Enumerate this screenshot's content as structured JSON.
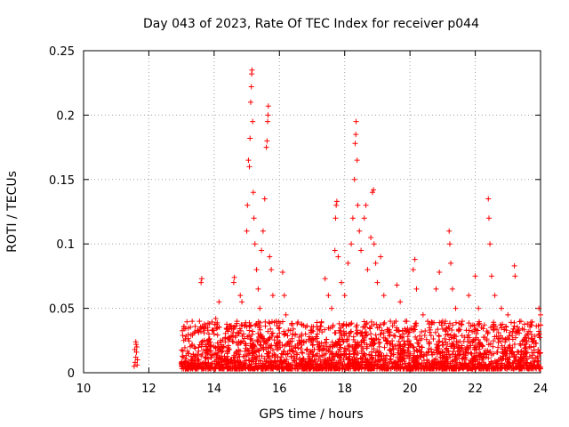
{
  "chart_data": {
    "type": "scatter",
    "title": "Day 043 of 2023, Rate Of TEC Index for receiver p044",
    "xlabel": "GPS time / hours",
    "ylabel": "ROTI / TECUs",
    "xlim": [
      10,
      24
    ],
    "ylim": [
      0,
      0.25
    ],
    "x_ticks": [
      10,
      12,
      14,
      16,
      18,
      20,
      22,
      24
    ],
    "x_tick_labels": [
      "10",
      "12",
      "14",
      "16",
      "18",
      "20",
      "22",
      "24"
    ],
    "y_ticks": [
      0,
      0.05,
      0.1,
      0.15,
      0.2,
      0.25
    ],
    "y_tick_labels": [
      "0",
      "0.05",
      "0.1",
      "0.15",
      "0.2",
      "0.25"
    ],
    "grid": true,
    "marker": "plus",
    "colors": {
      "series": "#ff0000",
      "grid": "#a0a0a0",
      "axis": "#000000"
    },
    "series": [
      {
        "values": [
          [
            11.55,
            0.005
          ],
          [
            11.58,
            0.008
          ],
          [
            11.6,
            0.012
          ],
          [
            11.62,
            0.016
          ],
          [
            11.63,
            0.02
          ],
          [
            11.6,
            0.024
          ],
          [
            11.65,
            0.01
          ],
          [
            11.57,
            0.018
          ],
          [
            11.64,
            0.006
          ],
          [
            11.61,
            0.022
          ],
          [
            13.0,
            0.005
          ],
          [
            13.05,
            0.012
          ],
          [
            13.1,
            0.008
          ],
          [
            13.2,
            0.015
          ],
          [
            13.3,
            0.01
          ],
          [
            13.4,
            0.02
          ],
          [
            13.5,
            0.014
          ],
          [
            13.6,
            0.07
          ],
          [
            13.62,
            0.073
          ],
          [
            13.55,
            0.04
          ],
          [
            13.7,
            0.025
          ],
          [
            13.8,
            0.018
          ],
          [
            13.9,
            0.012
          ],
          [
            14.0,
            0.03
          ],
          [
            14.05,
            0.042
          ],
          [
            14.1,
            0.035
          ],
          [
            14.15,
            0.055
          ],
          [
            14.2,
            0.025
          ],
          [
            14.3,
            0.02
          ],
          [
            14.4,
            0.015
          ],
          [
            14.5,
            0.028
          ],
          [
            14.6,
            0.07
          ],
          [
            14.62,
            0.074
          ],
          [
            14.7,
            0.04
          ],
          [
            14.8,
            0.06
          ],
          [
            14.85,
            0.055
          ],
          [
            14.9,
            0.03
          ],
          [
            15.0,
            0.11
          ],
          [
            15.02,
            0.13
          ],
          [
            15.05,
            0.165
          ],
          [
            15.08,
            0.16
          ],
          [
            15.1,
            0.182
          ],
          [
            15.12,
            0.21
          ],
          [
            15.14,
            0.222
          ],
          [
            15.15,
            0.232
          ],
          [
            15.16,
            0.235
          ],
          [
            15.18,
            0.195
          ],
          [
            15.2,
            0.14
          ],
          [
            15.22,
            0.12
          ],
          [
            15.25,
            0.1
          ],
          [
            15.3,
            0.08
          ],
          [
            15.35,
            0.065
          ],
          [
            15.4,
            0.05
          ],
          [
            15.45,
            0.095
          ],
          [
            15.5,
            0.11
          ],
          [
            15.55,
            0.135
          ],
          [
            15.6,
            0.175
          ],
          [
            15.62,
            0.18
          ],
          [
            15.64,
            0.195
          ],
          [
            15.65,
            0.2
          ],
          [
            15.66,
            0.207
          ],
          [
            15.7,
            0.09
          ],
          [
            15.75,
            0.08
          ],
          [
            15.8,
            0.06
          ],
          [
            15.9,
            0.04
          ],
          [
            16.0,
            0.035
          ],
          [
            16.1,
            0.078
          ],
          [
            16.15,
            0.06
          ],
          [
            16.2,
            0.045
          ],
          [
            16.4,
            0.03
          ],
          [
            16.6,
            0.025
          ],
          [
            16.8,
            0.03
          ],
          [
            17.0,
            0.025
          ],
          [
            17.2,
            0.02
          ],
          [
            17.4,
            0.073
          ],
          [
            17.5,
            0.06
          ],
          [
            17.6,
            0.05
          ],
          [
            17.7,
            0.095
          ],
          [
            17.72,
            0.12
          ],
          [
            17.74,
            0.13
          ],
          [
            17.76,
            0.133
          ],
          [
            17.8,
            0.09
          ],
          [
            17.9,
            0.07
          ],
          [
            18.0,
            0.06
          ],
          [
            18.1,
            0.085
          ],
          [
            18.2,
            0.1
          ],
          [
            18.25,
            0.12
          ],
          [
            18.3,
            0.15
          ],
          [
            18.32,
            0.178
          ],
          [
            18.34,
            0.185
          ],
          [
            18.35,
            0.195
          ],
          [
            18.38,
            0.165
          ],
          [
            18.4,
            0.13
          ],
          [
            18.45,
            0.11
          ],
          [
            18.5,
            0.095
          ],
          [
            18.6,
            0.12
          ],
          [
            18.65,
            0.13
          ],
          [
            18.7,
            0.08
          ],
          [
            18.8,
            0.105
          ],
          [
            18.85,
            0.14
          ],
          [
            18.88,
            0.142
          ],
          [
            18.9,
            0.1
          ],
          [
            18.95,
            0.085
          ],
          [
            19.0,
            0.07
          ],
          [
            19.1,
            0.09
          ],
          [
            19.2,
            0.06
          ],
          [
            19.4,
            0.04
          ],
          [
            19.6,
            0.068
          ],
          [
            19.7,
            0.055
          ],
          [
            19.9,
            0.04
          ],
          [
            20.1,
            0.08
          ],
          [
            20.15,
            0.088
          ],
          [
            20.2,
            0.065
          ],
          [
            20.4,
            0.045
          ],
          [
            20.6,
            0.035
          ],
          [
            20.8,
            0.065
          ],
          [
            20.9,
            0.078
          ],
          [
            21.0,
            0.04
          ],
          [
            21.2,
            0.11
          ],
          [
            21.22,
            0.1
          ],
          [
            21.25,
            0.085
          ],
          [
            21.3,
            0.065
          ],
          [
            21.4,
            0.05
          ],
          [
            21.6,
            0.04
          ],
          [
            21.8,
            0.06
          ],
          [
            22.0,
            0.075
          ],
          [
            22.1,
            0.05
          ],
          [
            22.4,
            0.135
          ],
          [
            22.42,
            0.12
          ],
          [
            22.45,
            0.1
          ],
          [
            22.5,
            0.075
          ],
          [
            22.6,
            0.06
          ],
          [
            22.8,
            0.05
          ],
          [
            23.0,
            0.045
          ],
          [
            23.2,
            0.083
          ],
          [
            23.22,
            0.075
          ],
          [
            23.4,
            0.04
          ],
          [
            23.6,
            0.03
          ],
          [
            23.8,
            0.025
          ],
          [
            23.95,
            0.05
          ],
          [
            24.0,
            0.045
          ]
        ]
      }
    ],
    "dense_band": {
      "x_range": [
        13.0,
        24.0
      ],
      "y_range": [
        0.003,
        0.04
      ],
      "note": "many overlapping points near the baseline"
    }
  }
}
